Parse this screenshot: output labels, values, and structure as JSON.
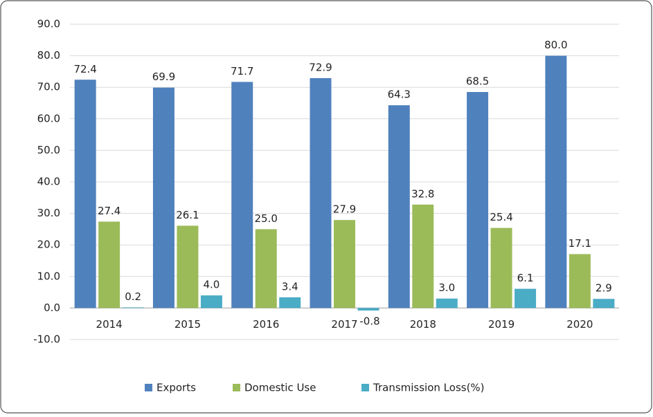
{
  "chart_data": {
    "type": "bar",
    "categories": [
      "2014",
      "2015",
      "2016",
      "2017",
      "2018",
      "2019",
      "2020"
    ],
    "series": [
      {
        "name": "Exports",
        "color": "#4f81bd",
        "values": [
          72.4,
          69.9,
          71.7,
          72.9,
          64.3,
          68.5,
          80.0
        ],
        "value_labels": [
          "72.4",
          "69.9",
          "71.7",
          "72.9",
          "64.3",
          "68.5",
          "80.0"
        ]
      },
      {
        "name": "Domestic Use",
        "color": "#9bbb59",
        "values": [
          27.4,
          26.1,
          25.0,
          27.9,
          32.8,
          25.4,
          17.1
        ],
        "value_labels": [
          "27.4",
          "26.1",
          "25.0",
          "27.9",
          "32.8",
          "25.4",
          "17.1"
        ]
      },
      {
        "name": "Transmission Loss(%)",
        "color": "#4bacc6",
        "values": [
          0.2,
          4.0,
          3.4,
          -0.8,
          3.0,
          6.1,
          2.9
        ],
        "value_labels": [
          "0.2",
          "4.0",
          "3.4",
          "-0.8",
          "3.0",
          "6.1",
          "2.9"
        ]
      }
    ],
    "ylim": [
      -10,
      90
    ],
    "yticks": [
      {
        "value": -10,
        "label": "-10.0"
      },
      {
        "value": 0,
        "label": "0.0"
      },
      {
        "value": 10,
        "label": "10.0"
      },
      {
        "value": 20,
        "label": "20.0"
      },
      {
        "value": 30,
        "label": "30.0"
      },
      {
        "value": 40,
        "label": "40.0"
      },
      {
        "value": 50,
        "label": "50.0"
      },
      {
        "value": 60,
        "label": "60.0"
      },
      {
        "value": 70,
        "label": "70.0"
      },
      {
        "value": 80,
        "label": "80.0"
      },
      {
        "value": 90,
        "label": "90.0"
      }
    ],
    "grid": true,
    "legend": "bottom"
  }
}
